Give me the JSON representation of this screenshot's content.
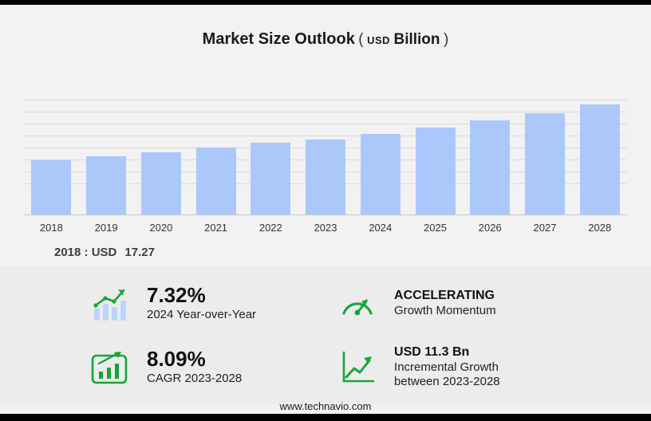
{
  "title": {
    "main": "Market Size Outlook",
    "paren_open": "(",
    "unit_small": "USD",
    "unit_big": "Billion",
    "paren_close": ")"
  },
  "chart_data": {
    "type": "bar",
    "title": "Market Size Outlook (USD Billion)",
    "categories": [
      "2018",
      "2019",
      "2020",
      "2021",
      "2022",
      "2023",
      "2024",
      "2025",
      "2026",
      "2027",
      "2028"
    ],
    "values": [
      17.27,
      18.6,
      20.0,
      21.5,
      22.9,
      24.0,
      25.8,
      27.8,
      30.0,
      32.5,
      35.3
    ],
    "xlabel": "",
    "ylabel": "",
    "ylim": [
      0,
      38
    ],
    "grid": true,
    "legend": "none",
    "bar_color": "#abc8fb"
  },
  "annotation": {
    "label": "2018 : USD",
    "value": "17.27"
  },
  "stats": [
    {
      "icon": "bar-chart-trend-icon",
      "value": "7.32%",
      "label": "2024 Year-over-Year"
    },
    {
      "icon": "speedometer-icon",
      "value": "ACCELERATING",
      "label": "Growth Momentum"
    },
    {
      "icon": "growth-bars-icon",
      "value": "8.09%",
      "label": "CAGR 2023-2028"
    },
    {
      "icon": "trend-arrow-icon",
      "value": "USD 11.3 Bn",
      "label": "Incremental Growth between 2023-2028"
    }
  ],
  "footer": {
    "url": "www.technavio.com"
  },
  "colors": {
    "bar": "#abc8fb",
    "accent_green": "#18a43b",
    "background": "#f2f2f2",
    "panel": "#ececec",
    "gridline": "#d9d9d9",
    "edge_bar": "#000000"
  }
}
